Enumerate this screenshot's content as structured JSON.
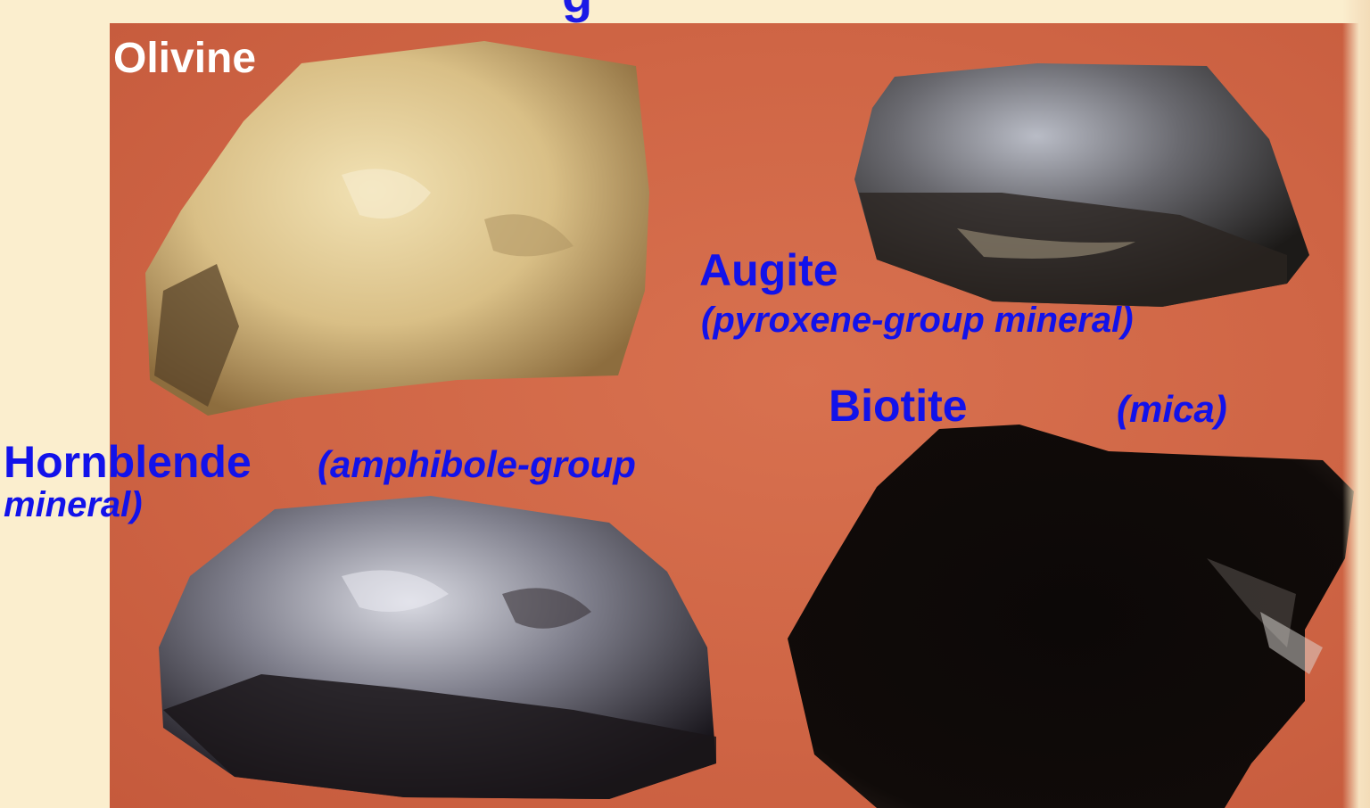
{
  "labels": {
    "olivine": "Olivine",
    "augite": "Augite",
    "augite_group": "(pyroxene-group mineral)",
    "biotite": "Biotite",
    "biotite_group": "(mica)",
    "hornblende": "Hornblende",
    "hornblende_group_line1": "(amphibole-group",
    "hornblende_group_line2": "mineral)"
  },
  "colors": {
    "label_blue": "#1212ea",
    "background": "#fbeece",
    "photo_backdrop": "#cf6545"
  }
}
